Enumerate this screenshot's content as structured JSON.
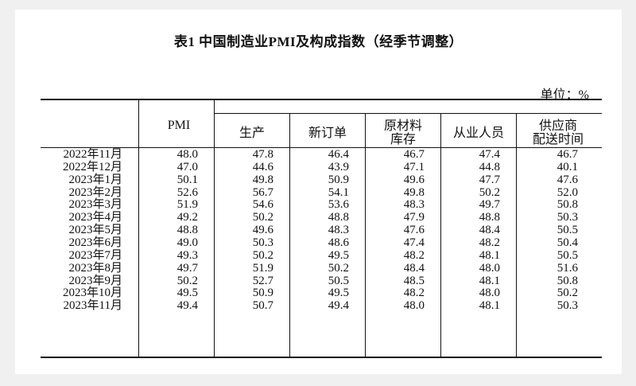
{
  "title": "表1 中国制造业PMI及构成指数（经季节调整）",
  "unit_label": "单位：%",
  "table": {
    "headers": [
      "PMI",
      "生产",
      "新订单",
      "原材料\n库存",
      "从业人员",
      "供应商\n配送时间"
    ],
    "rows": [
      {
        "month": "2022年11月",
        "values": [
          "48.0",
          "47.8",
          "46.4",
          "46.7",
          "47.4",
          "46.7"
        ]
      },
      {
        "month": "2022年12月",
        "values": [
          "47.0",
          "44.6",
          "43.9",
          "47.1",
          "44.8",
          "40.1"
        ]
      },
      {
        "month": "2023年1月",
        "values": [
          "50.1",
          "49.8",
          "50.9",
          "49.6",
          "47.7",
          "47.6"
        ]
      },
      {
        "month": "2023年2月",
        "values": [
          "52.6",
          "56.7",
          "54.1",
          "49.8",
          "50.2",
          "52.0"
        ]
      },
      {
        "month": "2023年3月",
        "values": [
          "51.9",
          "54.6",
          "53.6",
          "48.3",
          "49.7",
          "50.8"
        ]
      },
      {
        "month": "2023年4月",
        "values": [
          "49.2",
          "50.2",
          "48.8",
          "47.9",
          "48.8",
          "50.3"
        ]
      },
      {
        "month": "2023年5月",
        "values": [
          "48.8",
          "49.6",
          "48.3",
          "47.6",
          "48.4",
          "50.5"
        ]
      },
      {
        "month": "2023年6月",
        "values": [
          "49.0",
          "50.3",
          "48.6",
          "47.4",
          "48.2",
          "50.4"
        ]
      },
      {
        "month": "2023年7月",
        "values": [
          "49.3",
          "50.2",
          "49.5",
          "48.2",
          "48.1",
          "50.5"
        ]
      },
      {
        "month": "2023年8月",
        "values": [
          "49.7",
          "51.9",
          "50.2",
          "48.4",
          "48.0",
          "51.6"
        ]
      },
      {
        "month": "2023年9月",
        "values": [
          "50.2",
          "52.7",
          "50.5",
          "48.5",
          "48.1",
          "50.8"
        ]
      },
      {
        "month": "2023年10月",
        "values": [
          "49.5",
          "50.9",
          "49.5",
          "48.2",
          "48.0",
          "50.2"
        ]
      },
      {
        "month": "2023年11月",
        "values": [
          "49.4",
          "50.7",
          "49.4",
          "48.0",
          "48.1",
          "50.3"
        ]
      }
    ]
  }
}
